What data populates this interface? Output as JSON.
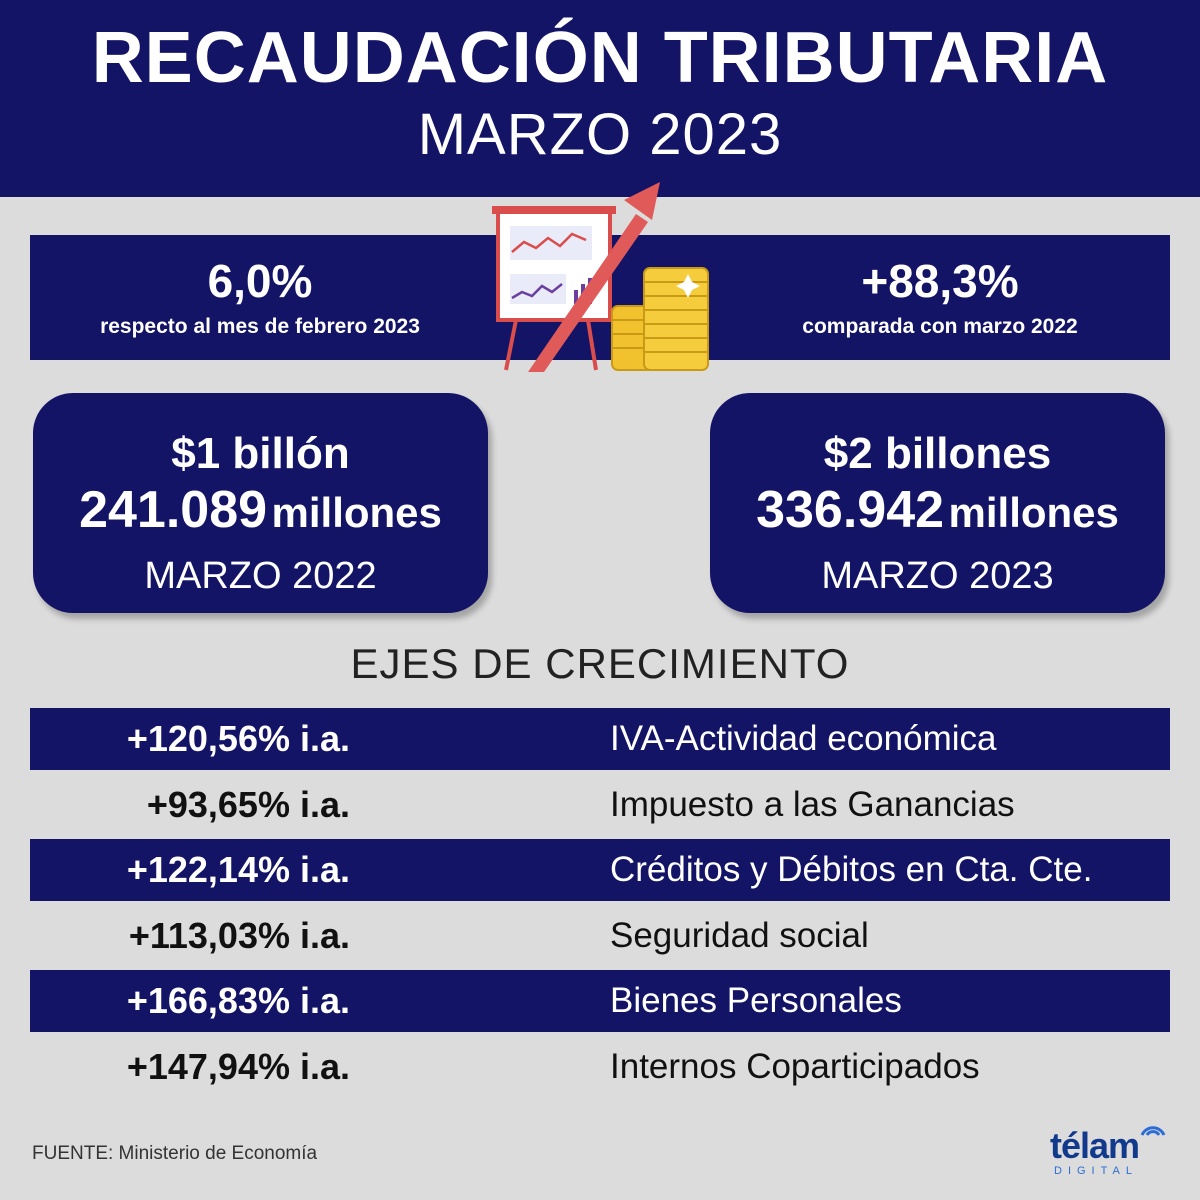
{
  "header": {
    "title": "RECAUDACIÓN TRIBUTARIA",
    "subtitle": "MARZO 2023"
  },
  "stats": {
    "left": {
      "value": "6,0%",
      "caption": "respecto al mes de febrero 2023"
    },
    "right": {
      "value": "+88,3%",
      "caption": "comparada con marzo 2022"
    }
  },
  "cards": {
    "left": {
      "line1": "$1 billón",
      "number": "241.089",
      "unit": "millones",
      "period": "MARZO 2022"
    },
    "right": {
      "line1": "$2 billones",
      "number": "336.942",
      "unit": "millones",
      "period": "MARZO 2023"
    }
  },
  "section_title": "EJES DE CRECIMIENTO",
  "rows": [
    {
      "pct": "+120,56% i.a.",
      "label": "IVA-Actividad económica",
      "style": "dark"
    },
    {
      "pct": "+93,65% i.a.",
      "label": "Impuesto a las Ganancias",
      "style": "light"
    },
    {
      "pct": "+122,14% i.a.",
      "label": "Créditos y Débitos en Cta. Cte.",
      "style": "dark"
    },
    {
      "pct": "+113,03% i.a.",
      "label": "Seguridad social",
      "style": "light"
    },
    {
      "pct": "+166,83% i.a.",
      "label": "Bienes Personales",
      "style": "dark"
    },
    {
      "pct": "+147,94% i.a.",
      "label": "Internos Coparticipados",
      "style": "light"
    }
  ],
  "footer": {
    "source": "FUENTE: Ministerio de Economía"
  },
  "logo": {
    "word": "télam",
    "sub": "DIGITAL"
  },
  "colors": {
    "navy": "#141466",
    "background": "#dcdcdc",
    "arrow": "#e05a5a",
    "coins": "#f2c12e"
  }
}
